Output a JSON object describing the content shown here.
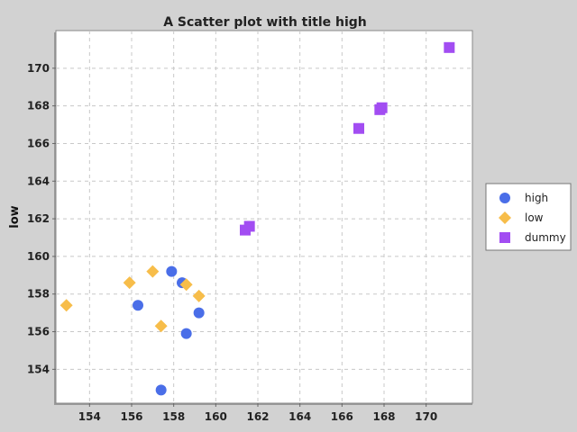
{
  "chart_data": {
    "type": "scatter",
    "title": "A Scatter plot with title high",
    "xlabel": "",
    "ylabel": "low",
    "xlim": [
      152.4,
      172.2
    ],
    "ylim": [
      152.2,
      172.0
    ],
    "xticks": [
      154,
      156,
      158,
      160,
      162,
      164,
      166,
      168,
      170
    ],
    "yticks": [
      154,
      156,
      158,
      160,
      162,
      164,
      166,
      168,
      170
    ],
    "grid": true,
    "legend_position": "right",
    "series": [
      {
        "name": "high",
        "marker": "circle",
        "color": "#4a6ee8",
        "points": [
          [
            157.9,
            159.2
          ],
          [
            158.4,
            158.6
          ],
          [
            156.3,
            157.4
          ],
          [
            159.2,
            157.0
          ],
          [
            158.6,
            155.9
          ],
          [
            157.4,
            152.9
          ]
        ]
      },
      {
        "name": "low",
        "marker": "diamond",
        "color": "#f7bd4a",
        "points": [
          [
            152.9,
            157.4
          ],
          [
            155.9,
            158.6
          ],
          [
            157.0,
            159.2
          ],
          [
            158.6,
            158.5
          ],
          [
            159.2,
            157.9
          ],
          [
            157.4,
            156.3
          ]
        ]
      },
      {
        "name": "dummy",
        "marker": "square",
        "color": "#a24df2",
        "points": [
          [
            171.1,
            171.1
          ],
          [
            167.9,
            167.9
          ],
          [
            167.8,
            167.8
          ],
          [
            166.8,
            166.8
          ],
          [
            161.6,
            161.6
          ],
          [
            161.4,
            161.4
          ]
        ]
      }
    ]
  }
}
